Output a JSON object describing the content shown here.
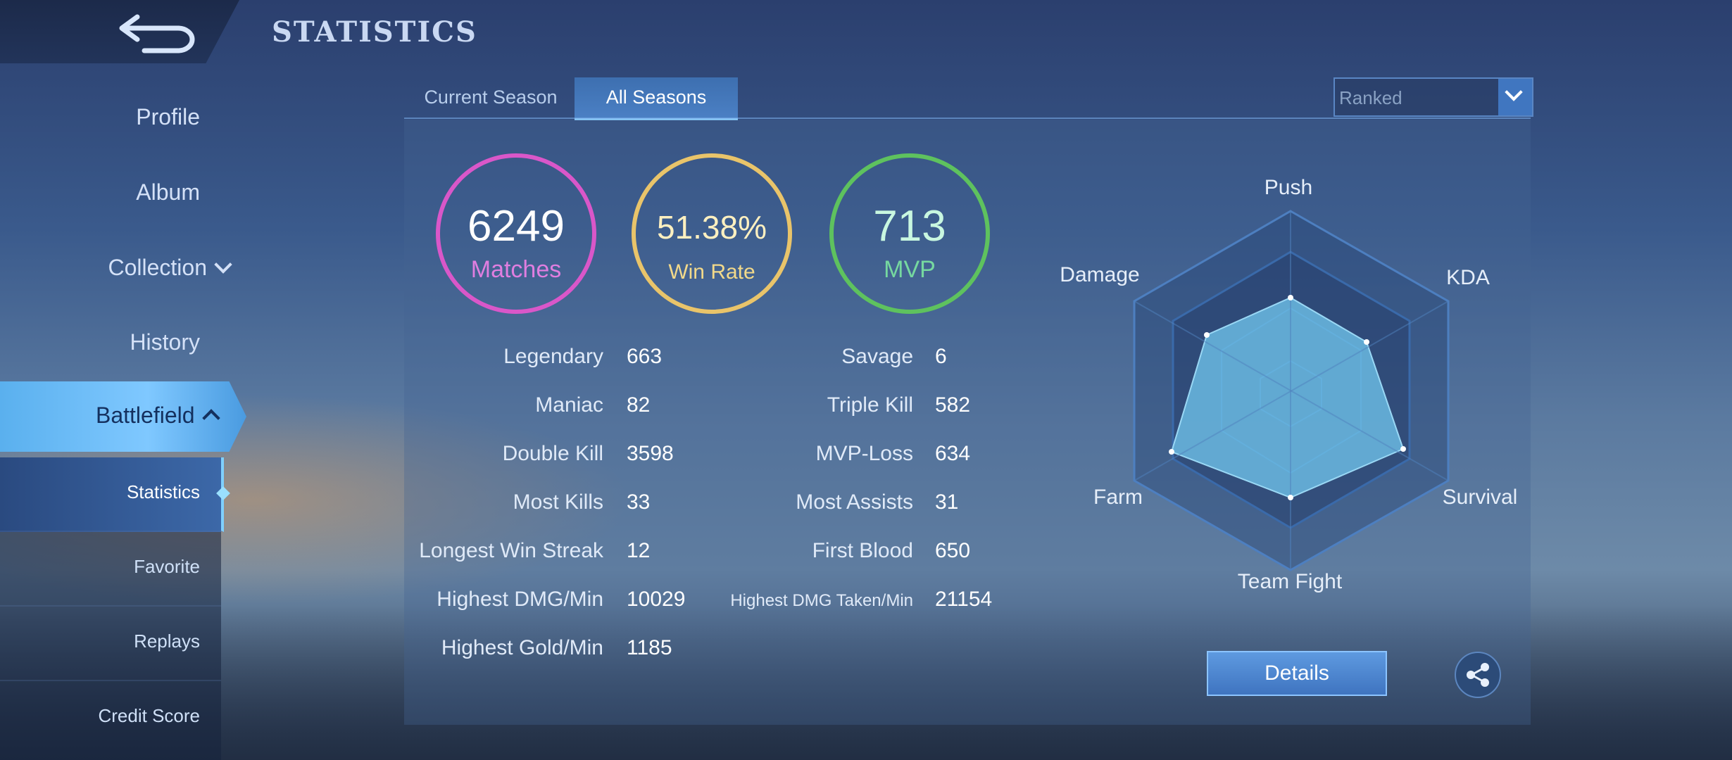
{
  "header": {
    "title": "STATISTICS"
  },
  "sidebar": {
    "items": [
      {
        "label": "Profile"
      },
      {
        "label": "Album"
      },
      {
        "label": "Collection"
      },
      {
        "label": "History"
      },
      {
        "label": "Battlefield"
      }
    ],
    "sub_items": [
      {
        "label": "Statistics",
        "active": true
      },
      {
        "label": "Favorite"
      },
      {
        "label": "Replays"
      },
      {
        "label": "Credit Score"
      }
    ]
  },
  "tabs": [
    {
      "label": "Current Season"
    },
    {
      "label": "All Seasons",
      "active": true
    }
  ],
  "mode_select": {
    "value": "Ranked"
  },
  "summary": {
    "matches": {
      "value": "6249",
      "label": "Matches",
      "color": "#d957c9"
    },
    "win_rate": {
      "value": "51.38%",
      "label": "Win Rate",
      "color": "#e9c46a"
    },
    "mvp": {
      "value": "713",
      "label": "MVP",
      "color": "#5ec25e"
    }
  },
  "stats_left": [
    {
      "label": "Legendary",
      "value": "663"
    },
    {
      "label": "Maniac",
      "value": "82"
    },
    {
      "label": "Double Kill",
      "value": "3598"
    },
    {
      "label": "Most Kills",
      "value": "33"
    },
    {
      "label": "Longest Win Streak",
      "value": "12"
    },
    {
      "label": "Highest DMG/Min",
      "value": "10029"
    },
    {
      "label": "Highest Gold/Min",
      "value": "1185"
    }
  ],
  "stats_right": [
    {
      "label": "Savage",
      "value": "6"
    },
    {
      "label": "Triple Kill",
      "value": "582"
    },
    {
      "label": "MVP-Loss",
      "value": "634"
    },
    {
      "label": "Most Assists",
      "value": "31"
    },
    {
      "label": "First Blood",
      "value": "650"
    },
    {
      "label": "Highest DMG Taken/Min",
      "value": "21154"
    }
  ],
  "radar": {
    "labels": {
      "push": "Push",
      "kda": "KDA",
      "survival": "Survival",
      "team_fight": "Team Fight",
      "farm": "Farm",
      "damage": "Damage"
    },
    "fill_color": "#6cc0e8"
  },
  "actions": {
    "details_label": "Details"
  }
}
